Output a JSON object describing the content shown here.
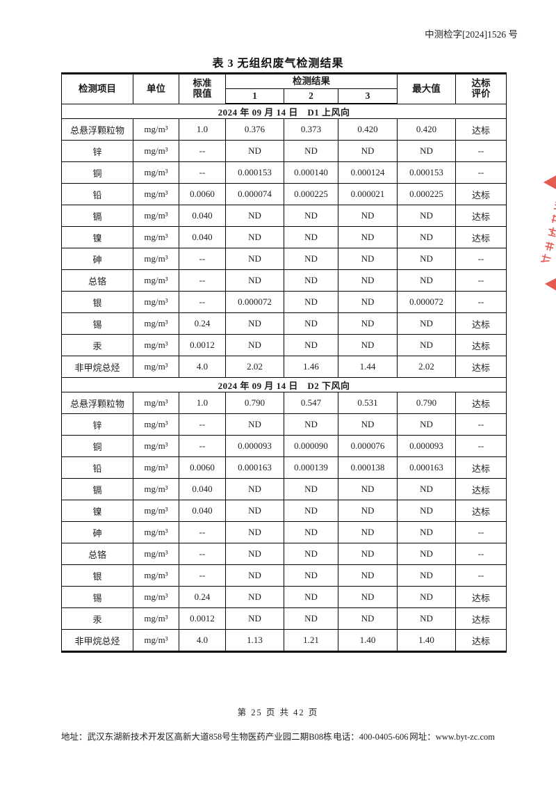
{
  "page": {
    "doc_number": "中测检字[2024]1526 号",
    "table_title": "表 3  无组织废气检测结果",
    "page_footer": "第 25 页 共 42 页",
    "footer": {
      "address": "地址：武汉东湖新技术开发区高新大道858号生物医药产业园二期B08栋",
      "phone": "电话：400-0405-606",
      "website": "网址：www.byt-zc.com"
    },
    "colors": {
      "stamp_red": "#e2453b",
      "border_black": "#000000"
    }
  },
  "table": {
    "headers": {
      "item": "检测项目",
      "unit": "单位",
      "limit_line1": "标准",
      "limit_line2": "限值",
      "results": "检测结果",
      "result_col_1": "1",
      "result_col_2": "2",
      "result_col_3": "3",
      "max": "最大值",
      "compliance_line1": "达标",
      "compliance_line2": "评价"
    },
    "sections": [
      {
        "title": "2024 年 09 月 14 日　D1 上风向",
        "rows": [
          {
            "item": "总悬浮颗粒物",
            "unit": "mg/m³",
            "limit": "1.0",
            "r1": "0.376",
            "r2": "0.373",
            "r3": "0.420",
            "max": "0.420",
            "eval": "达标"
          },
          {
            "item": "锌",
            "unit": "mg/m³",
            "limit": "--",
            "r1": "ND",
            "r2": "ND",
            "r3": "ND",
            "max": "ND",
            "eval": "--"
          },
          {
            "item": "铜",
            "unit": "mg/m³",
            "limit": "--",
            "r1": "0.000153",
            "r2": "0.000140",
            "r3": "0.000124",
            "max": "0.000153",
            "eval": "--"
          },
          {
            "item": "铅",
            "unit": "mg/m³",
            "limit": "0.0060",
            "r1": "0.000074",
            "r2": "0.000225",
            "r3": "0.000021",
            "max": "0.000225",
            "eval": "达标"
          },
          {
            "item": "镉",
            "unit": "mg/m³",
            "limit": "0.040",
            "r1": "ND",
            "r2": "ND",
            "r3": "ND",
            "max": "ND",
            "eval": "达标"
          },
          {
            "item": "镍",
            "unit": "mg/m³",
            "limit": "0.040",
            "r1": "ND",
            "r2": "ND",
            "r3": "ND",
            "max": "ND",
            "eval": "达标"
          },
          {
            "item": "砷",
            "unit": "mg/m³",
            "limit": "--",
            "r1": "ND",
            "r2": "ND",
            "r3": "ND",
            "max": "ND",
            "eval": "--"
          },
          {
            "item": "总铬",
            "unit": "mg/m³",
            "limit": "--",
            "r1": "ND",
            "r2": "ND",
            "r3": "ND",
            "max": "ND",
            "eval": "--"
          },
          {
            "item": "银",
            "unit": "mg/m³",
            "limit": "--",
            "r1": "0.000072",
            "r2": "ND",
            "r3": "ND",
            "max": "0.000072",
            "eval": "--"
          },
          {
            "item": "锡",
            "unit": "mg/m³",
            "limit": "0.24",
            "r1": "ND",
            "r2": "ND",
            "r3": "ND",
            "max": "ND",
            "eval": "达标"
          },
          {
            "item": "汞",
            "unit": "mg/m³",
            "limit": "0.0012",
            "r1": "ND",
            "r2": "ND",
            "r3": "ND",
            "max": "ND",
            "eval": "达标"
          },
          {
            "item": "非甲烷总烃",
            "unit": "mg/m³",
            "limit": "4.0",
            "r1": "2.02",
            "r2": "1.46",
            "r3": "1.44",
            "max": "2.02",
            "eval": "达标"
          }
        ]
      },
      {
        "title": "2024 年 09 月 14 日　D2 下风向",
        "rows": [
          {
            "item": "总悬浮颗粒物",
            "unit": "mg/m³",
            "limit": "1.0",
            "r1": "0.790",
            "r2": "0.547",
            "r3": "0.531",
            "max": "0.790",
            "eval": "达标"
          },
          {
            "item": "锌",
            "unit": "mg/m³",
            "limit": "--",
            "r1": "ND",
            "r2": "ND",
            "r3": "ND",
            "max": "ND",
            "eval": "--"
          },
          {
            "item": "铜",
            "unit": "mg/m³",
            "limit": "--",
            "r1": "0.000093",
            "r2": "0.000090",
            "r3": "0.000076",
            "max": "0.000093",
            "eval": "--"
          },
          {
            "item": "铅",
            "unit": "mg/m³",
            "limit": "0.0060",
            "r1": "0.000163",
            "r2": "0.000139",
            "r3": "0.000138",
            "max": "0.000163",
            "eval": "达标"
          },
          {
            "item": "镉",
            "unit": "mg/m³",
            "limit": "0.040",
            "r1": "ND",
            "r2": "ND",
            "r3": "ND",
            "max": "ND",
            "eval": "达标"
          },
          {
            "item": "镍",
            "unit": "mg/m³",
            "limit": "0.040",
            "r1": "ND",
            "r2": "ND",
            "r3": "ND",
            "max": "ND",
            "eval": "达标"
          },
          {
            "item": "砷",
            "unit": "mg/m³",
            "limit": "--",
            "r1": "ND",
            "r2": "ND",
            "r3": "ND",
            "max": "ND",
            "eval": "--"
          },
          {
            "item": "总铬",
            "unit": "mg/m³",
            "limit": "--",
            "r1": "ND",
            "r2": "ND",
            "r3": "ND",
            "max": "ND",
            "eval": "--"
          },
          {
            "item": "银",
            "unit": "mg/m³",
            "limit": "--",
            "r1": "ND",
            "r2": "ND",
            "r3": "ND",
            "max": "ND",
            "eval": "--"
          },
          {
            "item": "锡",
            "unit": "mg/m³",
            "limit": "0.24",
            "r1": "ND",
            "r2": "ND",
            "r3": "ND",
            "max": "ND",
            "eval": "达标"
          },
          {
            "item": "汞",
            "unit": "mg/m³",
            "limit": "0.0012",
            "r1": "ND",
            "r2": "ND",
            "r3": "ND",
            "max": "ND",
            "eval": "达标"
          },
          {
            "item": "非甲烷总烃",
            "unit": "mg/m³",
            "limit": "4.0",
            "r1": "1.13",
            "r2": "1.21",
            "r3": "1.40",
            "max": "1.40",
            "eval": "达标"
          }
        ]
      }
    ]
  }
}
